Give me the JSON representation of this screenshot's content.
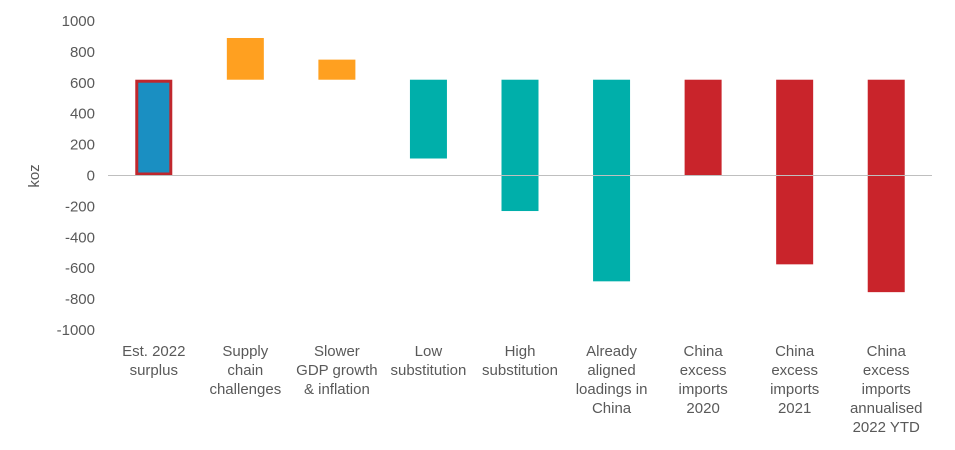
{
  "chart_data": {
    "type": "bar",
    "subtype": "floating-waterfall",
    "title": "",
    "xlabel": "",
    "ylabel": "koz",
    "ylim": [
      -1000,
      1000
    ],
    "yticks": [
      1000,
      800,
      600,
      400,
      200,
      0,
      -200,
      -400,
      -600,
      -800,
      -1000
    ],
    "grid": false,
    "categories": [
      "Est. 2022\nsurplus",
      "Supply\nchain\nchallenges",
      "Slower\nGDP growth\n& inflation",
      "Low\nsubstitution",
      "High\nsubstitution",
      "Already\naligned\nloadings in\nChina",
      "China\nexcess\nimports\n2020",
      "China\nexcess\nimports\n2021",
      "China\nexcess\nimports\nannualised\n2022 YTD"
    ],
    "bars": [
      {
        "start": 0,
        "end": 620,
        "color": "#1a8fc2",
        "edge": "#c0272d"
      },
      {
        "start": 620,
        "end": 890,
        "color": "#ffa020"
      },
      {
        "start": 620,
        "end": 750,
        "color": "#ffa020"
      },
      {
        "start": 620,
        "end": 110,
        "color": "#00afaa"
      },
      {
        "start": 620,
        "end": -230,
        "color": "#00afaa"
      },
      {
        "start": 620,
        "end": -685,
        "color": "#00afaa"
      },
      {
        "start": 620,
        "end": 0,
        "color": "#c9242b"
      },
      {
        "start": 620,
        "end": -575,
        "color": "#c9242b"
      },
      {
        "start": 620,
        "end": -755,
        "color": "#c9242b"
      }
    ]
  }
}
